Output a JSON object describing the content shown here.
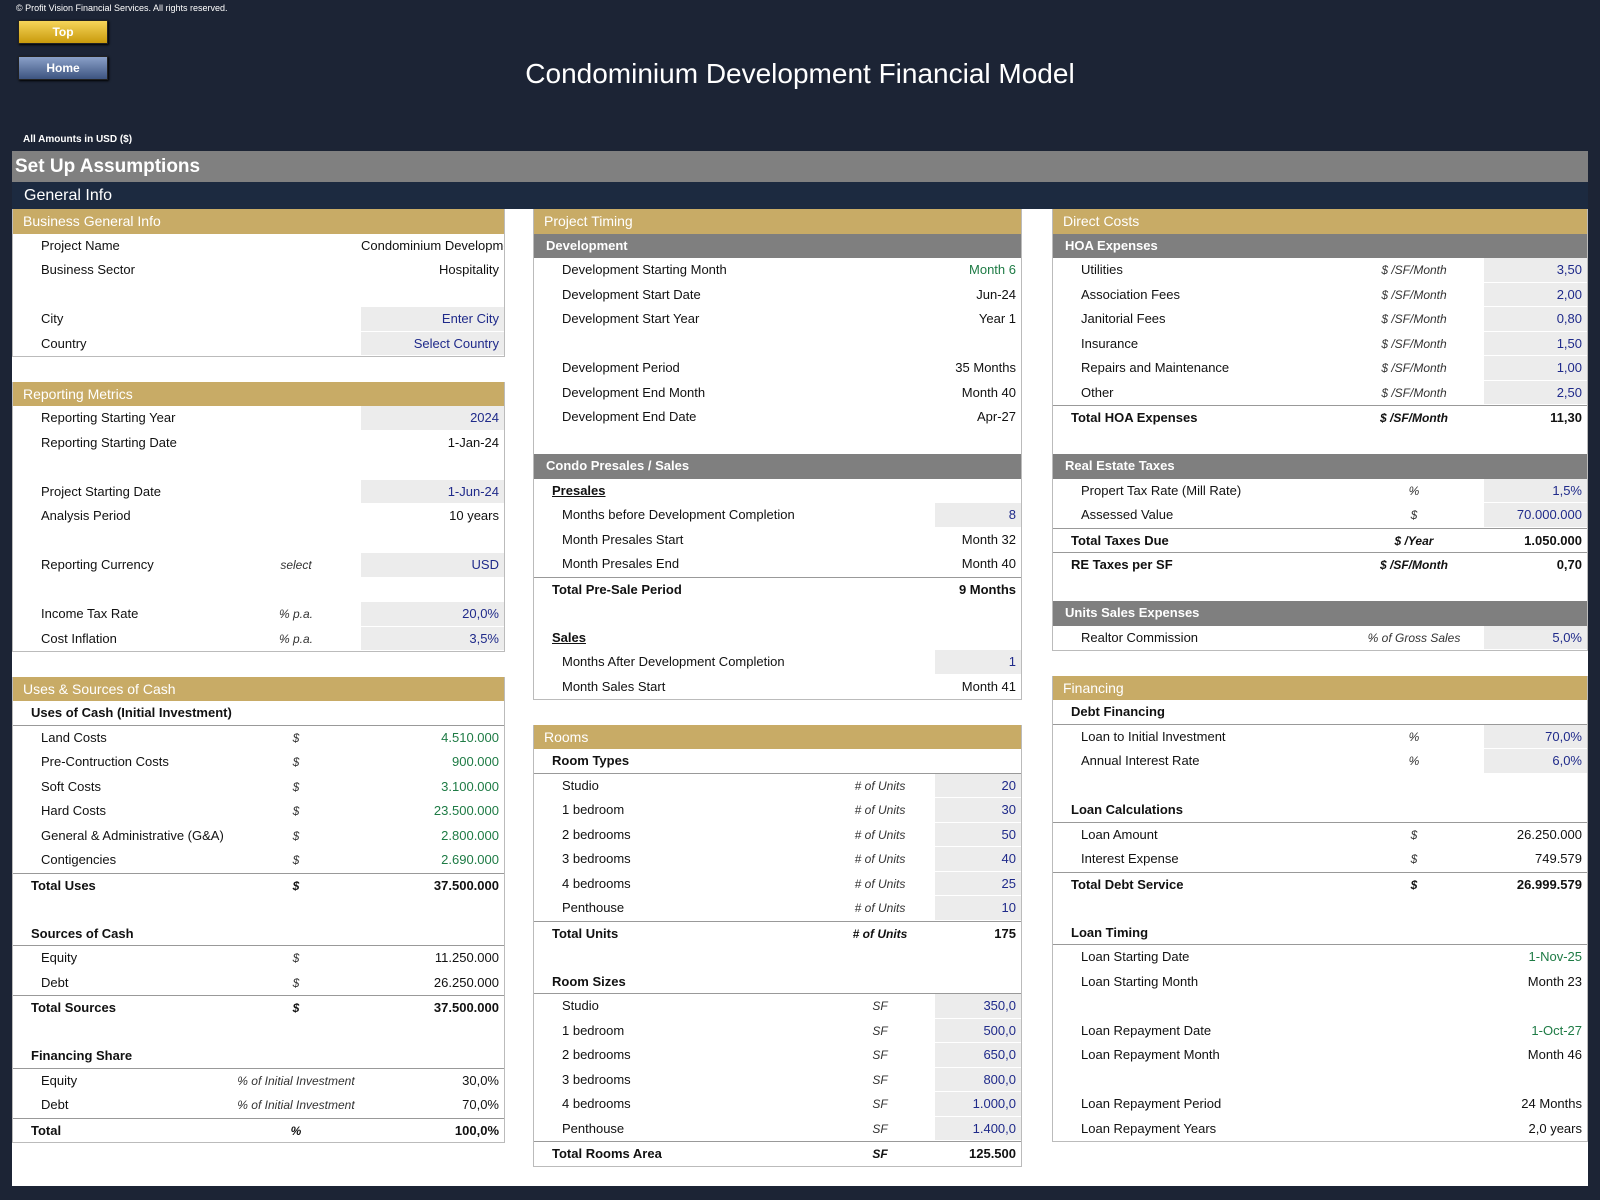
{
  "header": {
    "copyright": "© Profit Vision Financial Services. All rights reserved.",
    "buttons": [
      "Top",
      "Home"
    ],
    "title": "Condominium Development Financial Model",
    "amounts_note": "All Amounts in  USD ($)"
  },
  "section": "Set Up Assumptions",
  "subsection": "General Info",
  "columns": [
    [
      {
        "title": "Business General Info",
        "blocks": [
          {
            "rows": [
              {
                "label": "Project Name",
                "value": "Condominium Development"
              },
              {
                "label": "Business Sector",
                "value": "Hospitality"
              }
            ]
          },
          {
            "rows": [
              {
                "label": "City",
                "value": "Enter City",
                "style": "input"
              },
              {
                "label": "Country",
                "value": "Select Country",
                "style": "input"
              }
            ]
          }
        ]
      },
      {
        "title": "Reporting Metrics",
        "blocks": [
          {
            "rows": [
              {
                "label": "Reporting Starting Year",
                "value": "2024",
                "style": "input"
              },
              {
                "label": "Reporting Starting Date",
                "value": "1-Jan-24"
              }
            ]
          },
          {
            "rows": [
              {
                "label": "Project Starting Date",
                "value": "1-Jun-24",
                "style": "input"
              },
              {
                "label": "Analysis Period",
                "value": "10 years"
              }
            ]
          },
          {
            "rows": [
              {
                "label": "Reporting Currency",
                "unit": "select",
                "value": "USD",
                "style": "input"
              }
            ]
          },
          {
            "rows": [
              {
                "label": "Income Tax Rate",
                "unit": "% p.a.",
                "value": "20,0%",
                "style": "input"
              },
              {
                "label": "Cost Inflation",
                "unit": "% p.a.",
                "value": "3,5%",
                "style": "input"
              }
            ]
          }
        ]
      },
      {
        "title": "Uses & Sources of Cash",
        "blocks": [
          {
            "heading": "Uses of Cash (Initial Investment)",
            "heading_style": "bold",
            "rows": [
              {
                "label": "Land Costs",
                "unit": "$",
                "value": "4.510.000",
                "style": "green"
              },
              {
                "label": "Pre-Contruction Costs",
                "unit": "$",
                "value": "900.000",
                "style": "green"
              },
              {
                "label": "Soft Costs",
                "unit": "$",
                "value": "3.100.000",
                "style": "green"
              },
              {
                "label": "Hard Costs",
                "unit": "$",
                "value": "23.500.000",
                "style": "green"
              },
              {
                "label": "General & Administrative (G&A)",
                "unit": "$",
                "value": "2.800.000",
                "style": "green"
              },
              {
                "label": "Contigencies",
                "unit": "$",
                "value": "2.690.000",
                "style": "green"
              },
              {
                "label": "Total Uses",
                "unit": "$",
                "value": "37.500.000",
                "style": "total"
              }
            ]
          },
          {
            "heading": "Sources of Cash",
            "heading_style": "bold",
            "rows": [
              {
                "label": "Equity",
                "unit": "$",
                "value": "11.250.000"
              },
              {
                "label": "Debt",
                "unit": "$",
                "value": "26.250.000"
              },
              {
                "label": "Total Sources",
                "unit": "$",
                "value": "37.500.000",
                "style": "total"
              }
            ]
          },
          {
            "heading": "Financing Share",
            "heading_style": "bold",
            "rows": [
              {
                "label": "Equity",
                "unit": "% of Initial Investment",
                "value": "30,0%"
              },
              {
                "label": "Debt",
                "unit": "% of Initial Investment",
                "value": "70,0%"
              },
              {
                "label": "Total",
                "unit": "%",
                "value": "100,0%",
                "style": "total"
              }
            ]
          }
        ]
      }
    ],
    [
      {
        "title": "Project Timing",
        "blocks": [
          {
            "bar": "Development",
            "rows": [
              {
                "label": "Development Starting Month",
                "value": "Month 6",
                "style": "green"
              },
              {
                "label": "Development Start Date",
                "value": "Jun-24"
              },
              {
                "label": "Development Start Year",
                "value": "Year 1"
              }
            ]
          },
          {
            "rows": [
              {
                "label": "Development Period",
                "value": "35 Months"
              },
              {
                "label": "Development End Month",
                "value": "Month 40"
              },
              {
                "label": "Development End Date",
                "value": "Apr-27"
              }
            ]
          },
          {
            "bar": "Condo Presales / Sales",
            "heading": "Presales",
            "heading_style": "underline",
            "rows": [
              {
                "label": "Months before Development Completion",
                "value": "8",
                "style": "input"
              },
              {
                "label": "Month Presales Start",
                "value": "Month 32"
              },
              {
                "label": "Month Presales End",
                "value": "Month 40"
              },
              {
                "label": "Total Pre-Sale Period",
                "value": "9 Months",
                "style": "total"
              }
            ]
          },
          {
            "heading": "Sales",
            "heading_style": "underline",
            "rows": [
              {
                "label": "Months After Development Completion",
                "value": "1",
                "style": "input"
              },
              {
                "label": "Month Sales Start",
                "value": "Month 41"
              }
            ]
          }
        ]
      },
      {
        "title": "Rooms",
        "blocks": [
          {
            "heading": "Room Types",
            "heading_style": "bold",
            "rows": [
              {
                "label": "Studio",
                "unit": "# of Units",
                "value": "20",
                "style": "input"
              },
              {
                "label": "1 bedroom",
                "unit": "# of Units",
                "value": "30",
                "style": "input"
              },
              {
                "label": "2 bedrooms",
                "unit": "# of Units",
                "value": "50",
                "style": "input"
              },
              {
                "label": "3 bedrooms",
                "unit": "# of Units",
                "value": "40",
                "style": "input"
              },
              {
                "label": "4 bedrooms",
                "unit": "# of Units",
                "value": "25",
                "style": "input"
              },
              {
                "label": "Penthouse",
                "unit": "# of Units",
                "value": "10",
                "style": "input"
              },
              {
                "label": "Total Units",
                "unit": "# of Units",
                "value": "175",
                "style": "total"
              }
            ]
          },
          {
            "heading": "Room Sizes",
            "heading_style": "bold",
            "rows": [
              {
                "label": "Studio",
                "unit": "SF",
                "value": "350,0",
                "style": "input"
              },
              {
                "label": "1 bedroom",
                "unit": "SF",
                "value": "500,0",
                "style": "input"
              },
              {
                "label": "2 bedrooms",
                "unit": "SF",
                "value": "650,0",
                "style": "input"
              },
              {
                "label": "3 bedrooms",
                "unit": "SF",
                "value": "800,0",
                "style": "input"
              },
              {
                "label": "4 bedrooms",
                "unit": "SF",
                "value": "1.000,0",
                "style": "input"
              },
              {
                "label": "Penthouse",
                "unit": "SF",
                "value": "1.400,0",
                "style": "input"
              },
              {
                "label": "Total Rooms Area",
                "unit": "SF",
                "value": "125.500",
                "style": "total"
              }
            ]
          }
        ]
      }
    ],
    [
      {
        "title": "Direct Costs",
        "blocks": [
          {
            "bar": "HOA Expenses",
            "rows": [
              {
                "label": "Utilities",
                "unit": "$ /SF/Month",
                "value": "3,50",
                "style": "input"
              },
              {
                "label": "Association Fees",
                "unit": "$ /SF/Month",
                "value": "2,00",
                "style": "input"
              },
              {
                "label": "Janitorial Fees",
                "unit": "$ /SF/Month",
                "value": "0,80",
                "style": "input"
              },
              {
                "label": "Insurance",
                "unit": "$ /SF/Month",
                "value": "1,50",
                "style": "input"
              },
              {
                "label": "Repairs and Maintenance",
                "unit": "$ /SF/Month",
                "value": "1,00",
                "style": "input"
              },
              {
                "label": "Other",
                "unit": "$ /SF/Month",
                "value": "2,50",
                "style": "input"
              },
              {
                "label": "Total HOA Expenses",
                "unit": "$ /SF/Month",
                "value": "11,30",
                "style": "total"
              }
            ]
          },
          {
            "bar": "Real Estate Taxes",
            "rows": [
              {
                "label": "Propert Tax Rate (Mill Rate)",
                "unit": "%",
                "value": "1,5%",
                "style": "input"
              },
              {
                "label": "Assessed Value",
                "unit": "$",
                "value": "70.000.000",
                "style": "input"
              },
              {
                "label": "Total Taxes Due",
                "unit": "$ /Year",
                "value": "1.050.000",
                "style": "total"
              },
              {
                "label": "RE Taxes per SF",
                "unit": "$ /SF/Month",
                "value": "0,70",
                "style": "total"
              }
            ]
          },
          {
            "bar": "Units Sales Expenses",
            "rows": [
              {
                "label": "Realtor Commission",
                "unit": "% of Gross Sales",
                "value": "5,0%",
                "style": "input"
              }
            ]
          }
        ]
      },
      {
        "title": "Financing",
        "blocks": [
          {
            "heading": "Debt Financing",
            "heading_style": "bold",
            "rows": [
              {
                "label": "Loan to Initial Investment",
                "unit": "%",
                "value": "70,0%",
                "style": "input"
              },
              {
                "label": "Annual Interest Rate",
                "unit": "%",
                "value": "6,0%",
                "style": "input"
              }
            ]
          },
          {
            "heading": "Loan Calculations",
            "heading_style": "bold",
            "rows": [
              {
                "label": "Loan Amount",
                "unit": "$",
                "value": "26.250.000"
              },
              {
                "label": "Interest Expense",
                "unit": "$",
                "value": "749.579"
              },
              {
                "label": "Total Debt Service",
                "unit": "$",
                "value": "26.999.579",
                "style": "total"
              }
            ]
          },
          {
            "heading": "Loan Timing",
            "heading_style": "bold",
            "rows": [
              {
                "label": "Loan Starting Date",
                "value": "1-Nov-25",
                "style": "green"
              },
              {
                "label": "Loan Starting Month",
                "value": "Month 23"
              }
            ]
          },
          {
            "rows": [
              {
                "label": "Loan Repayment Date",
                "value": "1-Oct-27",
                "style": "green"
              },
              {
                "label": "Loan Repayment Month",
                "value": "Month 46"
              }
            ]
          },
          {
            "rows": [
              {
                "label": "Loan Repayment Period",
                "value": "24 Months"
              },
              {
                "label": "Loan Repayment Years",
                "value": "2,0 years"
              }
            ]
          }
        ]
      }
    ]
  ]
}
